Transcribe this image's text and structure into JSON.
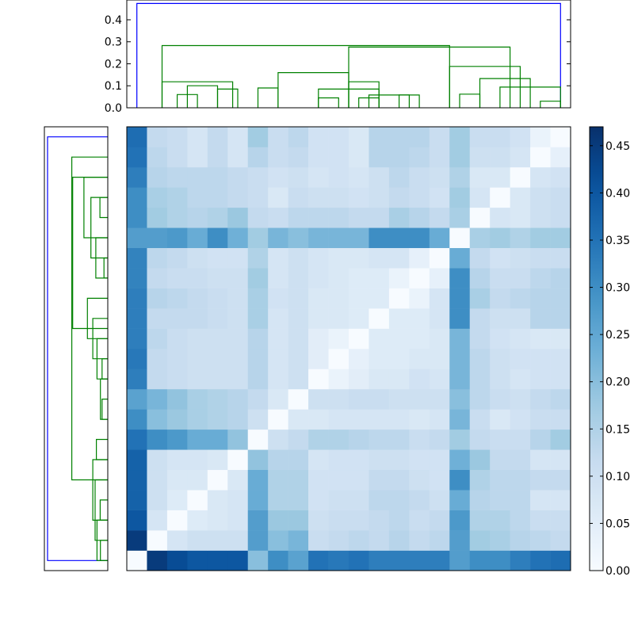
{
  "chart_data": [
    {
      "type": "dendrogram",
      "name_hint": "top",
      "orientation": "top",
      "ylim": [
        0,
        0.49
      ],
      "yticks": [
        0.0,
        0.1,
        0.2,
        0.3,
        0.4
      ],
      "ytick_labels": [
        "0.0",
        "0.1",
        "0.2",
        "0.3",
        "0.4"
      ],
      "n_leaves": 22,
      "link_colors": {
        "root": "#0000ff",
        "cluster": "#008000"
      },
      "links": [
        {
          "left": 0,
          "right": 21,
          "height": 0.474,
          "color": "#0000ff"
        },
        {
          "left": 1.25,
          "right": 15.5,
          "height": 0.283,
          "color": "#008000"
        },
        {
          "left": 10.5,
          "right": 18.5,
          "height": 0.276,
          "color": "#008000"
        },
        {
          "left": 1.25,
          "right": 4.75,
          "height": 0.118,
          "color": "#008000"
        },
        {
          "left": 2.5,
          "right": 4.0,
          "height": 0.1,
          "color": "#008000"
        },
        {
          "left": 2.0,
          "right": 3.0,
          "height": 0.06,
          "color": "#008000"
        },
        {
          "left": 4.0,
          "right": 5.0,
          "height": 0.085,
          "color": "#008000"
        },
        {
          "left": 6.0,
          "right": 7.0,
          "height": 0.09,
          "color": "#008000"
        },
        {
          "left": 7.0,
          "right": 10.5,
          "height": 0.16,
          "color": "#008000"
        },
        {
          "left": 10.5,
          "right": 12.0,
          "height": 0.118,
          "color": "#008000"
        },
        {
          "left": 9.0,
          "right": 12.0,
          "height": 0.085,
          "color": "#008000"
        },
        {
          "left": 9.0,
          "right": 10.0,
          "height": 0.045,
          "color": "#008000"
        },
        {
          "left": 11.5,
          "right": 13.5,
          "height": 0.058,
          "color": "#008000"
        },
        {
          "left": 11.0,
          "right": 12.0,
          "height": 0.045,
          "color": "#008000"
        },
        {
          "left": 13.0,
          "right": 14.0,
          "height": 0.058,
          "color": "#008000"
        },
        {
          "left": 15.5,
          "right": 19.0,
          "height": 0.188,
          "color": "#008000"
        },
        {
          "left": 17.0,
          "right": 19.5,
          "height": 0.133,
          "color": "#008000"
        },
        {
          "left": 16.0,
          "right": 17.0,
          "height": 0.062,
          "color": "#008000"
        },
        {
          "left": 18.0,
          "right": 21.0,
          "height": 0.094,
          "color": "#008000"
        },
        {
          "left": 20.0,
          "right": 21.0,
          "height": 0.03,
          "color": "#008000"
        }
      ]
    },
    {
      "type": "dendrogram",
      "name_hint": "left",
      "orientation": "left",
      "n_leaves": 22,
      "max_height": 0.474,
      "links": [
        {
          "left": 0,
          "right": 21,
          "height": 0.474,
          "color": "#0000ff"
        },
        {
          "left": 1.0,
          "right": 17.0,
          "height": 0.283,
          "color": "#008000"
        },
        {
          "left": 2.0,
          "right": 9.5,
          "height": 0.276,
          "color": "#008000"
        },
        {
          "left": 2.0,
          "right": 5.0,
          "height": 0.188,
          "color": "#008000"
        },
        {
          "left": 3.0,
          "right": 6.0,
          "height": 0.133,
          "color": "#008000"
        },
        {
          "left": 3.0,
          "right": 4.0,
          "height": 0.062,
          "color": "#008000"
        },
        {
          "left": 5.0,
          "right": 7.0,
          "height": 0.094,
          "color": "#008000"
        },
        {
          "left": 6.0,
          "right": 7.0,
          "height": 0.03,
          "color": "#008000"
        },
        {
          "left": 8.0,
          "right": 10.0,
          "height": 0.16,
          "color": "#008000"
        },
        {
          "left": 9.0,
          "right": 11.0,
          "height": 0.118,
          "color": "#008000"
        },
        {
          "left": 10.0,
          "right": 12.0,
          "height": 0.085,
          "color": "#008000"
        },
        {
          "left": 11.0,
          "right": 12.0,
          "height": 0.045,
          "color": "#008000"
        },
        {
          "left": 12.0,
          "right": 14.0,
          "height": 0.058,
          "color": "#008000"
        },
        {
          "left": 13.0,
          "right": 14.0,
          "height": 0.045,
          "color": "#008000"
        },
        {
          "left": 15.0,
          "right": 16.0,
          "height": 0.09,
          "color": "#008000"
        },
        {
          "left": 16.0,
          "right": 19.0,
          "height": 0.118,
          "color": "#008000"
        },
        {
          "left": 17.0,
          "right": 20.0,
          "height": 0.1,
          "color": "#008000"
        },
        {
          "left": 18.0,
          "right": 19.0,
          "height": 0.06,
          "color": "#008000"
        },
        {
          "left": 19.0,
          "right": 21.0,
          "height": 0.085,
          "color": "#008000"
        },
        {
          "left": 20.0,
          "right": 21.0,
          "height": 0.058,
          "color": "#008000"
        }
      ]
    },
    {
      "type": "heatmap",
      "n_rows": 22,
      "n_cols": 22,
      "colormap": "Blues",
      "vmin": 0.0,
      "vmax": 0.47,
      "color_stops": [
        "#f7fbff",
        "#deebf7",
        "#c6dbef",
        "#9ecae1",
        "#6baed6",
        "#4292c6",
        "#2171b5",
        "#08519c",
        "#08306b"
      ],
      "values": [
        [
          0.0,
          0.45,
          0.42,
          0.4,
          0.4,
          0.4,
          0.2,
          0.3,
          0.26,
          0.35,
          0.34,
          0.35,
          0.33,
          0.33,
          0.33,
          0.33,
          0.27,
          0.3,
          0.3,
          0.33,
          0.35,
          0.36
        ],
        [
          0.45,
          0.0,
          0.08,
          0.1,
          0.1,
          0.1,
          0.27,
          0.2,
          0.22,
          0.11,
          0.12,
          0.13,
          0.12,
          0.14,
          0.12,
          0.13,
          0.27,
          0.17,
          0.16,
          0.14,
          0.13,
          0.12
        ],
        [
          0.4,
          0.08,
          0.0,
          0.06,
          0.07,
          0.08,
          0.27,
          0.18,
          0.18,
          0.1,
          0.11,
          0.11,
          0.12,
          0.13,
          0.11,
          0.12,
          0.28,
          0.15,
          0.15,
          0.13,
          0.11,
          0.11
        ],
        [
          0.38,
          0.1,
          0.06,
          0.0,
          0.07,
          0.08,
          0.24,
          0.15,
          0.15,
          0.09,
          0.1,
          0.1,
          0.13,
          0.13,
          0.12,
          0.1,
          0.24,
          0.14,
          0.13,
          0.13,
          0.08,
          0.08
        ],
        [
          0.38,
          0.1,
          0.07,
          0.07,
          0.0,
          0.07,
          0.24,
          0.15,
          0.15,
          0.09,
          0.09,
          0.09,
          0.12,
          0.12,
          0.1,
          0.09,
          0.3,
          0.15,
          0.13,
          0.13,
          0.12,
          0.12
        ],
        [
          0.38,
          0.1,
          0.08,
          0.08,
          0.07,
          0.0,
          0.19,
          0.14,
          0.14,
          0.08,
          0.09,
          0.09,
          0.1,
          0.1,
          0.09,
          0.09,
          0.23,
          0.18,
          0.12,
          0.12,
          0.08,
          0.08
        ],
        [
          0.35,
          0.3,
          0.28,
          0.24,
          0.24,
          0.19,
          0.0,
          0.1,
          0.12,
          0.15,
          0.15,
          0.14,
          0.13,
          0.13,
          0.11,
          0.12,
          0.17,
          0.12,
          0.11,
          0.11,
          0.14,
          0.17
        ],
        [
          0.3,
          0.2,
          0.18,
          0.16,
          0.15,
          0.14,
          0.1,
          0.0,
          0.07,
          0.07,
          0.08,
          0.08,
          0.08,
          0.08,
          0.07,
          0.08,
          0.22,
          0.11,
          0.07,
          0.09,
          0.11,
          0.11
        ],
        [
          0.26,
          0.22,
          0.19,
          0.16,
          0.15,
          0.14,
          0.12,
          0.07,
          0.0,
          0.1,
          0.1,
          0.11,
          0.11,
          0.1,
          0.1,
          0.1,
          0.2,
          0.13,
          0.11,
          0.1,
          0.12,
          0.13
        ],
        [
          0.33,
          0.12,
          0.11,
          0.1,
          0.1,
          0.1,
          0.14,
          0.08,
          0.1,
          0.0,
          0.03,
          0.05,
          0.07,
          0.07,
          0.09,
          0.08,
          0.22,
          0.13,
          0.1,
          0.08,
          0.09,
          0.09
        ],
        [
          0.34,
          0.12,
          0.11,
          0.1,
          0.1,
          0.1,
          0.14,
          0.08,
          0.1,
          0.05,
          0.0,
          0.04,
          0.06,
          0.06,
          0.07,
          0.07,
          0.22,
          0.13,
          0.1,
          0.09,
          0.09,
          0.09
        ],
        [
          0.33,
          0.13,
          0.11,
          0.1,
          0.1,
          0.1,
          0.14,
          0.08,
          0.1,
          0.05,
          0.03,
          0.0,
          0.06,
          0.06,
          0.06,
          0.07,
          0.22,
          0.12,
          0.09,
          0.08,
          0.07,
          0.07
        ],
        [
          0.33,
          0.12,
          0.12,
          0.12,
          0.11,
          0.1,
          0.16,
          0.08,
          0.1,
          0.07,
          0.07,
          0.06,
          0.0,
          0.06,
          0.06,
          0.08,
          0.3,
          0.12,
          0.1,
          0.1,
          0.14,
          0.14
        ],
        [
          0.33,
          0.14,
          0.13,
          0.12,
          0.11,
          0.1,
          0.16,
          0.09,
          0.1,
          0.07,
          0.07,
          0.06,
          0.06,
          0.0,
          0.03,
          0.08,
          0.3,
          0.16,
          0.12,
          0.13,
          0.14,
          0.14
        ],
        [
          0.32,
          0.12,
          0.11,
          0.11,
          0.1,
          0.1,
          0.17,
          0.08,
          0.1,
          0.08,
          0.07,
          0.06,
          0.06,
          0.03,
          0.0,
          0.04,
          0.3,
          0.14,
          0.11,
          0.11,
          0.13,
          0.14
        ],
        [
          0.32,
          0.13,
          0.12,
          0.1,
          0.09,
          0.09,
          0.15,
          0.08,
          0.1,
          0.08,
          0.07,
          0.07,
          0.08,
          0.08,
          0.04,
          0.0,
          0.24,
          0.12,
          0.09,
          0.1,
          0.11,
          0.11
        ],
        [
          0.27,
          0.27,
          0.28,
          0.24,
          0.3,
          0.23,
          0.17,
          0.22,
          0.2,
          0.22,
          0.22,
          0.22,
          0.3,
          0.3,
          0.3,
          0.24,
          0.0,
          0.16,
          0.17,
          0.15,
          0.17,
          0.17
        ],
        [
          0.3,
          0.17,
          0.15,
          0.14,
          0.15,
          0.18,
          0.12,
          0.11,
          0.13,
          0.13,
          0.13,
          0.12,
          0.12,
          0.16,
          0.14,
          0.12,
          0.16,
          0.0,
          0.08,
          0.07,
          0.1,
          0.11
        ],
        [
          0.3,
          0.16,
          0.15,
          0.13,
          0.13,
          0.12,
          0.11,
          0.07,
          0.11,
          0.1,
          0.1,
          0.09,
          0.1,
          0.12,
          0.11,
          0.09,
          0.17,
          0.08,
          0.0,
          0.07,
          0.1,
          0.11
        ],
        [
          0.33,
          0.14,
          0.13,
          0.13,
          0.13,
          0.12,
          0.11,
          0.09,
          0.1,
          0.08,
          0.09,
          0.08,
          0.1,
          0.13,
          0.11,
          0.1,
          0.15,
          0.07,
          0.07,
          0.0,
          0.08,
          0.09
        ],
        [
          0.35,
          0.13,
          0.11,
          0.08,
          0.12,
          0.08,
          0.14,
          0.11,
          0.12,
          0.09,
          0.09,
          0.07,
          0.14,
          0.14,
          0.13,
          0.11,
          0.17,
          0.1,
          0.1,
          0.08,
          0.0,
          0.04
        ],
        [
          0.36,
          0.12,
          0.11,
          0.08,
          0.12,
          0.08,
          0.17,
          0.11,
          0.13,
          0.09,
          0.09,
          0.07,
          0.14,
          0.14,
          0.14,
          0.11,
          0.17,
          0.11,
          0.11,
          0.09,
          0.03,
          0.0
        ]
      ]
    },
    {
      "type": "colorbar",
      "vmin": 0.0,
      "vmax": 0.47,
      "ticks": [
        0.0,
        0.05,
        0.1,
        0.15,
        0.2,
        0.25,
        0.3,
        0.35,
        0.4,
        0.45
      ],
      "tick_labels": [
        "0.00",
        "0.05",
        "0.10",
        "0.15",
        "0.20",
        "0.25",
        "0.30",
        "0.35",
        "0.40",
        "0.45"
      ]
    }
  ]
}
